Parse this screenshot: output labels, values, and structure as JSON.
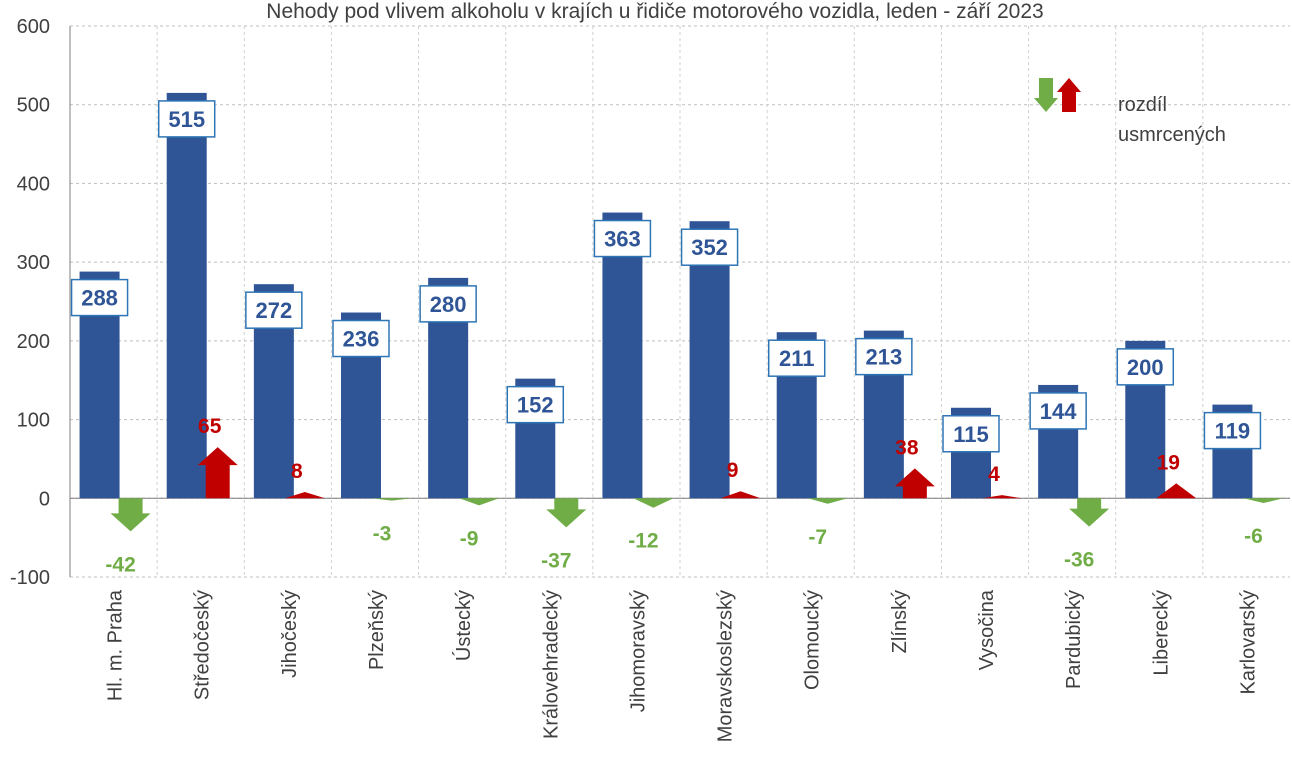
{
  "chart_data": {
    "type": "bar",
    "title": "Nehody pod vlivem alkoholu v krajích u řidiče motorového vozidla,  leden - září 2023",
    "categories": [
      "Hl. m. Praha",
      "Středočeský",
      "Jihočeský",
      "Plzeňský",
      "Ústecký",
      "Královehradecký",
      "Jihomoravský",
      "Moravskoslezský",
      "Olomoucký",
      "Zlínský",
      "Vysočina",
      "Pardubický",
      "Liberecký",
      "Karlovarský"
    ],
    "series": [
      {
        "color": "#2f5597",
        "values": [
          288,
          515,
          272,
          236,
          280,
          152,
          363,
          352,
          211,
          213,
          115,
          144,
          200,
          119
        ]
      },
      {
        "name": "rozdíl usmrcených",
        "type": "arrow",
        "color_positive": "#c00000",
        "color_negative": "#70ad47",
        "values": [
          -42,
          65,
          8,
          -3,
          -9,
          -37,
          -12,
          9,
          -7,
          38,
          4,
          -36,
          19,
          -6
        ]
      }
    ],
    "ylim": [
      -100,
      600
    ],
    "yticks": [
      -100,
      0,
      100,
      200,
      300,
      400,
      500,
      600
    ],
    "grid": true
  }
}
